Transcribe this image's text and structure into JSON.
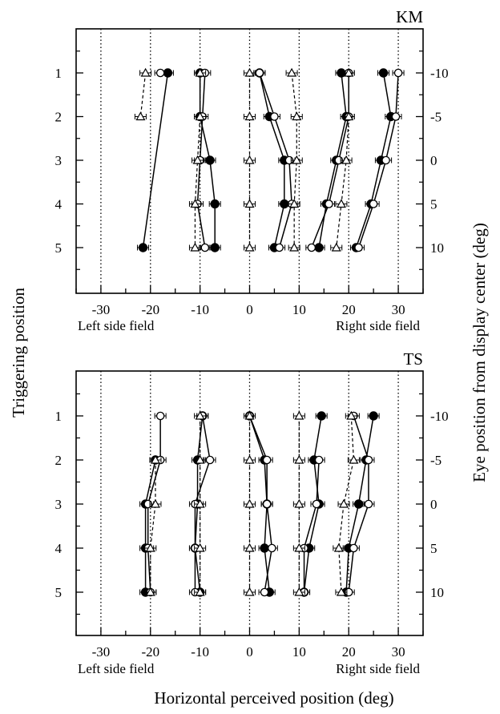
{
  "chart_data": [
    {
      "type": "scatter",
      "title": "KM",
      "xlabel": "",
      "ylabel_left": "Triggering position",
      "ylabel_right": "Eye position from display center (deg)",
      "field_left": "Left side field",
      "field_right": "Right side field",
      "xlim": [
        -35,
        35
      ],
      "x_ticks": [
        "-30",
        "-20",
        "-10",
        "0",
        "10",
        "20",
        "30"
      ],
      "x_tick_values": [
        -30,
        -20,
        -10,
        0,
        10,
        20,
        30
      ],
      "y_ticks_left": [
        "1",
        "2",
        "3",
        "4",
        "5"
      ],
      "y_ticks_right": [
        "-10",
        "-5",
        "0",
        "5",
        "10"
      ],
      "dotted_gridlines_x": [
        -30,
        -20,
        -10,
        0,
        10,
        20,
        30
      ],
      "series": [
        {
          "marker": "filled-circle",
          "line": "solid",
          "group": 1,
          "x": [
            -16.5,
            null,
            null,
            null,
            -21.5
          ]
        },
        {
          "marker": "open-circle",
          "line": "solid",
          "group": 1,
          "x": [
            -18,
            null,
            null,
            null,
            null
          ]
        },
        {
          "marker": "open-triangle",
          "line": "dashed",
          "group": 1,
          "x": [
            -21,
            -22,
            null,
            null,
            null
          ]
        },
        {
          "marker": "filled-circle",
          "line": "solid",
          "group": 2,
          "x": [
            -10,
            -10,
            -8,
            -7,
            -7
          ]
        },
        {
          "marker": "open-circle",
          "line": "solid",
          "group": 2,
          "x": [
            -9,
            -9.5,
            -10,
            -10.5,
            -9
          ]
        },
        {
          "marker": "open-triangle",
          "line": "dashed",
          "group": 2,
          "x": [
            -10,
            -10,
            -10.5,
            -11,
            -11
          ]
        },
        {
          "marker": "filled-circle",
          "line": "solid",
          "group": 3,
          "x": [
            2,
            4,
            7,
            7,
            5
          ]
        },
        {
          "marker": "open-circle",
          "line": "solid",
          "group": 3,
          "x": [
            2,
            5,
            8,
            8.5,
            6
          ]
        },
        {
          "marker": "open-triangle",
          "line": "dashed",
          "group": 3,
          "x": [
            0,
            0,
            0,
            0,
            0
          ]
        },
        {
          "marker": "filled-circle",
          "line": "solid",
          "group": 4,
          "x": [
            18.5,
            19.5,
            17.5,
            15.5,
            14
          ]
        },
        {
          "marker": "open-circle",
          "line": "solid",
          "group": 4,
          "x": [
            20,
            20,
            18,
            16,
            12.5
          ]
        },
        {
          "marker": "open-triangle",
          "line": "dashed",
          "group": 4,
          "x": [
            8.5,
            9.5,
            9.5,
            9,
            9
          ]
        },
        {
          "marker": "filled-circle",
          "line": "solid",
          "group": 5,
          "x": [
            27,
            28.5,
            26.5,
            24.5,
            21.5
          ]
        },
        {
          "marker": "open-circle",
          "line": "solid",
          "group": 5,
          "x": [
            30,
            29.5,
            27.5,
            25,
            22
          ]
        },
        {
          "marker": "open-triangle",
          "line": "dashed",
          "group": 5,
          "x": [
            20,
            20,
            19.5,
            18.5,
            17.5
          ]
        }
      ]
    },
    {
      "type": "scatter",
      "title": "TS",
      "xlabel": "Horizontal perceived position (deg)",
      "field_left": "Left side field",
      "field_right": "Right side field",
      "xlim": [
        -35,
        35
      ],
      "x_ticks": [
        "-30",
        "-20",
        "-10",
        "0",
        "10",
        "20",
        "30"
      ],
      "x_tick_values": [
        -30,
        -20,
        -10,
        0,
        10,
        20,
        30
      ],
      "y_ticks_left": [
        "1",
        "2",
        "3",
        "4",
        "5"
      ],
      "y_ticks_right": [
        "-10",
        "-5",
        "0",
        "5",
        "10"
      ],
      "dotted_gridlines_x": [
        -30,
        -20,
        -10,
        0,
        10,
        20,
        30
      ],
      "series": [
        {
          "marker": "filled-circle",
          "line": "solid",
          "group": 1,
          "x": [
            null,
            -19,
            -21,
            -21,
            -21
          ]
        },
        {
          "marker": "open-circle",
          "line": "solid",
          "group": 1,
          "x": [
            -18,
            -18,
            -20.5,
            -20.5,
            -20
          ]
        },
        {
          "marker": "open-triangle",
          "line": "dashed",
          "group": 1,
          "x": [
            null,
            -19,
            -19,
            -20,
            -20
          ]
        },
        {
          "marker": "filled-circle",
          "line": "solid",
          "group": 2,
          "x": [
            -9.5,
            -10.5,
            -10.5,
            -11,
            -10
          ]
        },
        {
          "marker": "open-circle",
          "line": "solid",
          "group": 2,
          "x": [
            -9.5,
            -8,
            -11,
            -11,
            -11
          ]
        },
        {
          "marker": "open-triangle",
          "line": "dashed",
          "group": 2,
          "x": [
            -10,
            -10,
            -10,
            -10,
            -10
          ]
        },
        {
          "marker": "filled-circle",
          "line": "solid",
          "group": 3,
          "x": [
            0,
            3,
            3.5,
            3,
            4
          ]
        },
        {
          "marker": "open-circle",
          "line": "solid",
          "group": 3,
          "x": [
            0,
            3.5,
            3.5,
            4.5,
            3
          ]
        },
        {
          "marker": "open-triangle",
          "line": "dashed",
          "group": 3,
          "x": [
            0,
            0,
            0,
            0,
            0
          ]
        },
        {
          "marker": "filled-circle",
          "line": "solid",
          "group": 4,
          "x": [
            14.5,
            13,
            14,
            12,
            11
          ]
        },
        {
          "marker": "open-circle",
          "line": "solid",
          "group": 4,
          "x": [
            null,
            14,
            13.5,
            11,
            11
          ]
        },
        {
          "marker": "open-triangle",
          "line": "dashed",
          "group": 4,
          "x": [
            10,
            10,
            10,
            10,
            10
          ]
        },
        {
          "marker": "filled-circle",
          "line": "solid",
          "group": 5,
          "x": [
            25,
            23.5,
            22,
            20,
            19.5
          ]
        },
        {
          "marker": "open-circle",
          "line": "solid",
          "group": 5,
          "x": [
            21,
            24,
            24,
            21,
            20
          ]
        },
        {
          "marker": "open-triangle",
          "line": "dashed",
          "group": 5,
          "x": [
            20.5,
            21,
            19,
            18,
            18.5
          ]
        }
      ]
    }
  ]
}
